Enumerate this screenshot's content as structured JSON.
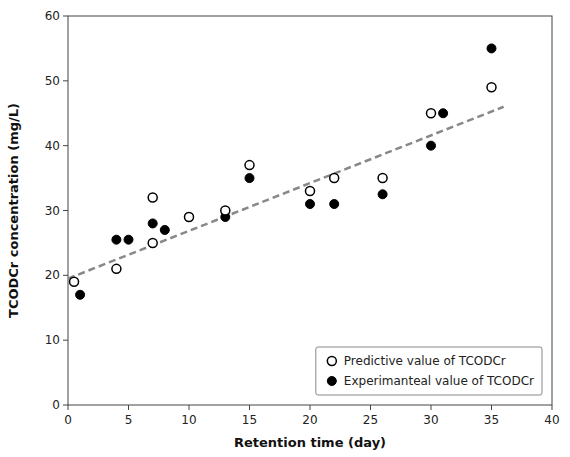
{
  "chart_data": {
    "type": "scatter",
    "xlabel": "Retention time (day)",
    "ylabel": "TCODCr concentration (mg/L)",
    "series": [
      {
        "name": "Predictive value of TCODCr",
        "type": "scatter",
        "marker": "open-circle",
        "color": "#000000",
        "x": [
          0.5,
          4,
          7,
          7,
          10,
          13,
          15,
          20,
          22,
          26,
          30,
          35
        ],
        "values": [
          19,
          21,
          25,
          32,
          29,
          30,
          37,
          33,
          35,
          35,
          45,
          49
        ]
      },
      {
        "name": "Experimanteal value of TCODCr",
        "type": "scatter",
        "marker": "circle",
        "color": "#000000",
        "x": [
          1,
          4,
          5,
          7,
          8,
          10,
          13,
          15,
          20,
          22,
          26,
          30,
          31,
          35
        ],
        "values": [
          17,
          25.5,
          25.5,
          28,
          27,
          29,
          29,
          35,
          31,
          31,
          32.5,
          40,
          45,
          55
        ]
      },
      {
        "type": "line",
        "line_style": "dashed",
        "color": "#888888",
        "x": [
          0,
          36
        ],
        "values": [
          19.5,
          46.0
        ]
      }
    ],
    "xlim": [
      0,
      40
    ],
    "ylim": [
      0,
      60
    ],
    "xticks": [
      0,
      5,
      10,
      15,
      20,
      25,
      30,
      35,
      40
    ],
    "yticks": [
      0,
      10,
      20,
      30,
      40,
      50,
      60
    ],
    "grid": false,
    "legend": "lower right"
  }
}
